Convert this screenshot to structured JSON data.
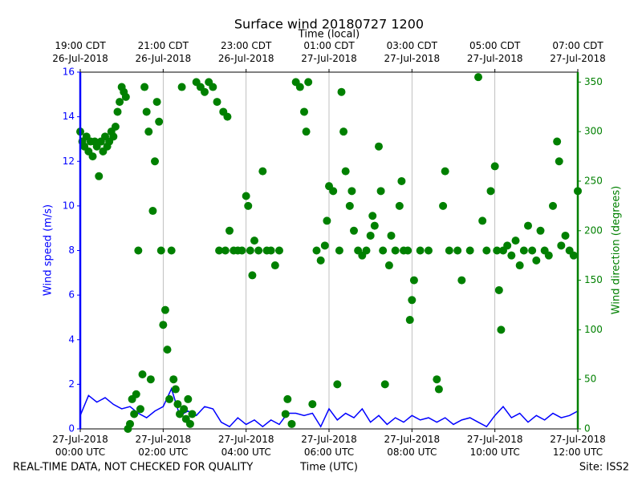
{
  "chart_data": {
    "type": "line-scatter",
    "title": "Surface wind 20180727 1200",
    "top_xlabel": "Time (local)",
    "xlabel": "Time (UTC)",
    "ylabel": "Wind speed (m/s)",
    "y2label": "Wind direction (degrees)",
    "footer_left": "REAL-TIME DATA, NOT CHECKED FOR QUALITY",
    "footer_right": "Site: ISS2",
    "xlim": [
      0,
      12
    ],
    "xticks": [
      {
        "value": 0,
        "label": "27-Jul-2018\n00:00 UTC"
      },
      {
        "value": 2,
        "label": "27-Jul-2018\n02:00 UTC"
      },
      {
        "value": 4,
        "label": "27-Jul-2018\n04:00 UTC"
      },
      {
        "value": 6,
        "label": "27-Jul-2018\n06:00 UTC"
      },
      {
        "value": 8,
        "label": "27-Jul-2018\n08:00 UTC"
      },
      {
        "value": 10,
        "label": "27-Jul-2018\n10:00 UTC"
      },
      {
        "value": 12,
        "label": "27-Jul-2018\n12:00 UTC"
      }
    ],
    "top_xticks": [
      {
        "value": 0,
        "label": "19:00 CDT\n26-Jul-2018"
      },
      {
        "value": 2,
        "label": "21:00 CDT\n26-Jul-2018"
      },
      {
        "value": 4,
        "label": "23:00 CDT\n26-Jul-2018"
      },
      {
        "value": 6,
        "label": "01:00 CDT\n27-Jul-2018"
      },
      {
        "value": 8,
        "label": "03:00 CDT\n27-Jul-2018"
      },
      {
        "value": 10,
        "label": "05:00 CDT\n27-Jul-2018"
      },
      {
        "value": 12,
        "label": "07:00 CDT\n27-Jul-2018"
      }
    ],
    "ylim": [
      0,
      16
    ],
    "yticks": [
      0,
      2,
      4,
      6,
      8,
      10,
      12,
      14,
      16
    ],
    "y2lim": [
      0,
      360
    ],
    "y2ticks": [
      0,
      50,
      100,
      150,
      200,
      250,
      300,
      350
    ],
    "grid": true,
    "series": [
      {
        "name": "Wind speed",
        "kind": "line",
        "color": "#0000ff",
        "x": [
          0,
          0.2,
          0.4,
          0.6,
          0.8,
          1,
          1.2,
          1.4,
          1.6,
          1.8,
          2,
          2.2,
          2.4,
          2.6,
          2.8,
          3,
          3.2,
          3.4,
          3.6,
          3.8,
          4,
          4.2,
          4.4,
          4.6,
          4.8,
          5,
          5.2,
          5.4,
          5.6,
          5.8,
          6,
          6.2,
          6.4,
          6.6,
          6.8,
          7,
          7.2,
          7.4,
          7.6,
          7.8,
          8,
          8.2,
          8.4,
          8.6,
          8.8,
          9,
          9.2,
          9.4,
          9.6,
          9.8,
          10,
          10.2,
          10.4,
          10.6,
          10.8,
          11,
          11.2,
          11.4,
          11.6,
          11.8,
          12
        ],
        "values": [
          0.6,
          1.5,
          1.2,
          1.4,
          1.1,
          0.9,
          1.0,
          0.7,
          0.5,
          0.8,
          1.0,
          1.8,
          0.6,
          0.8,
          0.6,
          1.0,
          0.9,
          0.3,
          0.1,
          0.5,
          0.2,
          0.4,
          0.1,
          0.4,
          0.2,
          0.7,
          0.7,
          0.6,
          0.7,
          0.1,
          0.9,
          0.4,
          0.7,
          0.5,
          0.9,
          0.3,
          0.6,
          0.2,
          0.5,
          0.3,
          0.6,
          0.4,
          0.5,
          0.3,
          0.5,
          0.2,
          0.4,
          0.5,
          0.3,
          0.1,
          0.6,
          1.0,
          0.5,
          0.7,
          0.3,
          0.6,
          0.4,
          0.7,
          0.5,
          0.6,
          0.8
        ]
      },
      {
        "name": "Wind direction",
        "kind": "scatter",
        "axis": "y2",
        "color": "#008000",
        "x": [
          0,
          0.05,
          0.1,
          0.15,
          0.2,
          0.25,
          0.3,
          0.35,
          0.4,
          0.45,
          0.5,
          0.55,
          0.6,
          0.65,
          0.7,
          0.75,
          0.8,
          0.85,
          0.9,
          0.95,
          1,
          1.05,
          1.1,
          1.15,
          1.2,
          1.25,
          1.3,
          1.35,
          1.4,
          1.45,
          1.5,
          1.55,
          1.6,
          1.65,
          1.7,
          1.75,
          1.8,
          1.85,
          1.9,
          1.95,
          2,
          2.05,
          2.1,
          2.15,
          2.2,
          2.25,
          2.3,
          2.35,
          2.4,
          2.45,
          2.5,
          2.55,
          2.6,
          2.65,
          2.7,
          2.8,
          2.9,
          3,
          3.1,
          3.2,
          3.3,
          3.35,
          3.45,
          3.5,
          3.55,
          3.6,
          3.7,
          3.8,
          3.9,
          4,
          4.05,
          4.1,
          4.15,
          4.2,
          4.3,
          4.4,
          4.5,
          4.6,
          4.7,
          4.8,
          4.95,
          5,
          5.1,
          5.2,
          5.3,
          5.4,
          5.45,
          5.5,
          5.6,
          5.7,
          5.8,
          5.9,
          5.95,
          6,
          6.1,
          6.2,
          6.25,
          6.3,
          6.35,
          6.4,
          6.5,
          6.55,
          6.6,
          6.7,
          6.8,
          6.9,
          7,
          7.05,
          7.1,
          7.2,
          7.25,
          7.3,
          7.35,
          7.45,
          7.5,
          7.6,
          7.7,
          7.75,
          7.8,
          7.9,
          7.95,
          8,
          8.05,
          8.2,
          8.4,
          8.6,
          8.65,
          8.75,
          8.8,
          8.9,
          9.1,
          9.2,
          9.4,
          9.6,
          9.7,
          9.8,
          9.9,
          10,
          10.05,
          10.1,
          10.15,
          10.2,
          10.3,
          10.4,
          10.5,
          10.6,
          10.7,
          10.8,
          10.9,
          11,
          11.1,
          11.2,
          11.3,
          11.4,
          11.5,
          11.55,
          11.6,
          11.7,
          11.8,
          11.9,
          12
        ],
        "values": [
          300,
          290,
          285,
          295,
          280,
          290,
          275,
          290,
          285,
          255,
          290,
          280,
          295,
          285,
          290,
          300,
          295,
          305,
          320,
          330,
          345,
          340,
          335,
          0,
          5,
          30,
          15,
          35,
          180,
          20,
          55,
          345,
          320,
          300,
          50,
          220,
          270,
          330,
          310,
          180,
          105,
          120,
          80,
          30,
          180,
          50,
          40,
          25,
          15,
          345,
          20,
          10,
          30,
          5,
          15,
          350,
          345,
          340,
          350,
          345,
          330,
          180,
          320,
          180,
          315,
          200,
          180,
          180,
          180,
          235,
          225,
          180,
          155,
          190,
          180,
          260,
          180,
          180,
          165,
          180,
          15,
          30,
          5,
          350,
          345,
          320,
          300,
          350,
          25,
          180,
          170,
          185,
          210,
          245,
          240,
          45,
          180,
          340,
          300,
          260,
          225,
          240,
          200,
          180,
          175,
          180,
          195,
          215,
          205,
          285,
          240,
          180,
          45,
          165,
          195,
          180,
          225,
          250,
          180,
          180,
          110,
          130,
          150,
          180,
          180,
          50,
          40,
          225,
          260,
          180,
          180,
          150,
          180,
          355,
          210,
          180,
          240,
          265,
          180,
          140,
          100,
          180,
          185,
          175,
          190,
          165,
          180,
          205,
          180,
          170,
          200,
          180,
          175,
          225,
          290,
          270,
          185,
          195,
          180,
          175,
          240
        ]
      }
    ]
  }
}
